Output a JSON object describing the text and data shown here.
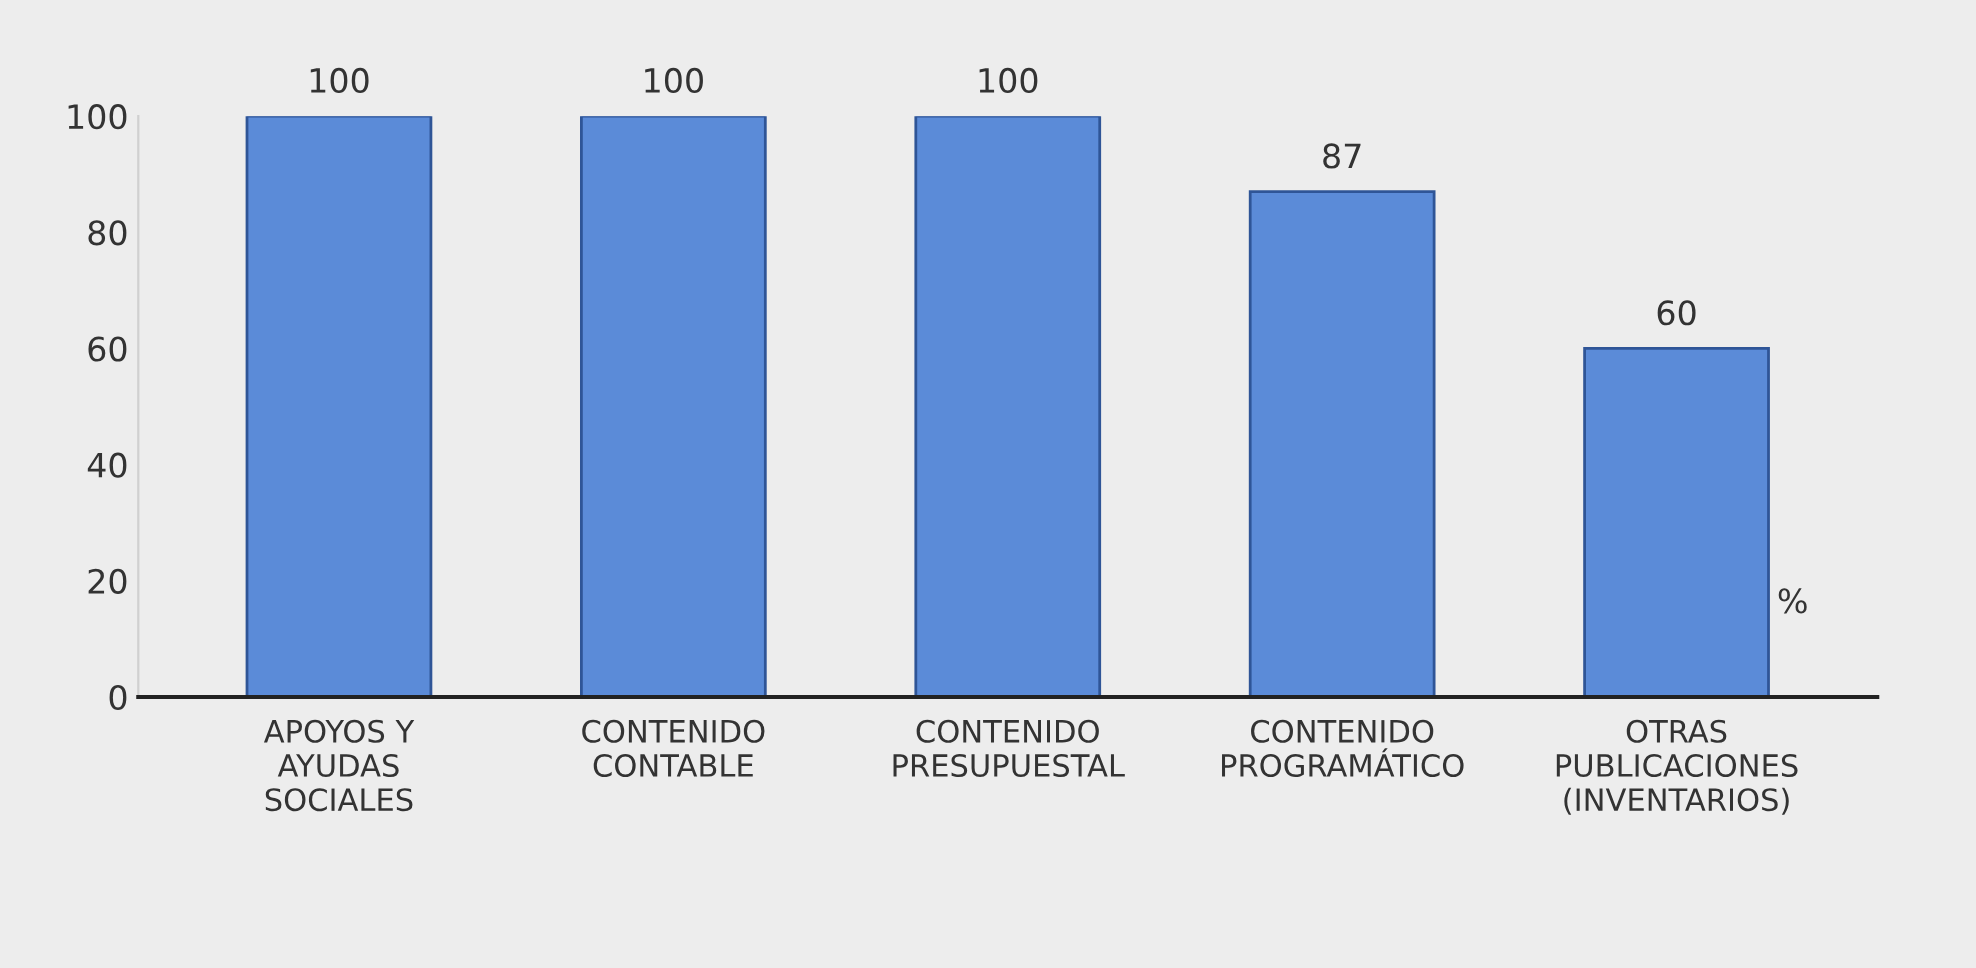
{
  "chart_data": {
    "type": "bar",
    "categories": [
      "APOYOS Y\nAYUDAS\nSOCIALES",
      "CONTENIDO\nCONTABLE",
      "CONTENIDO\nPRESUPUESTAL",
      "CONTENIDO\nPROGRAMÁTICO",
      "OTRAS\nPUBLICACIONES\n(INVENTARIOS)"
    ],
    "values": [
      100,
      100,
      100,
      87,
      60
    ],
    "color": "#5b8bd8",
    "ylim": [
      0,
      100
    ],
    "yticks": [
      0,
      20,
      40,
      60,
      80,
      100
    ],
    "grid": false,
    "data_labels": true,
    "annotations": [
      "%"
    ]
  }
}
